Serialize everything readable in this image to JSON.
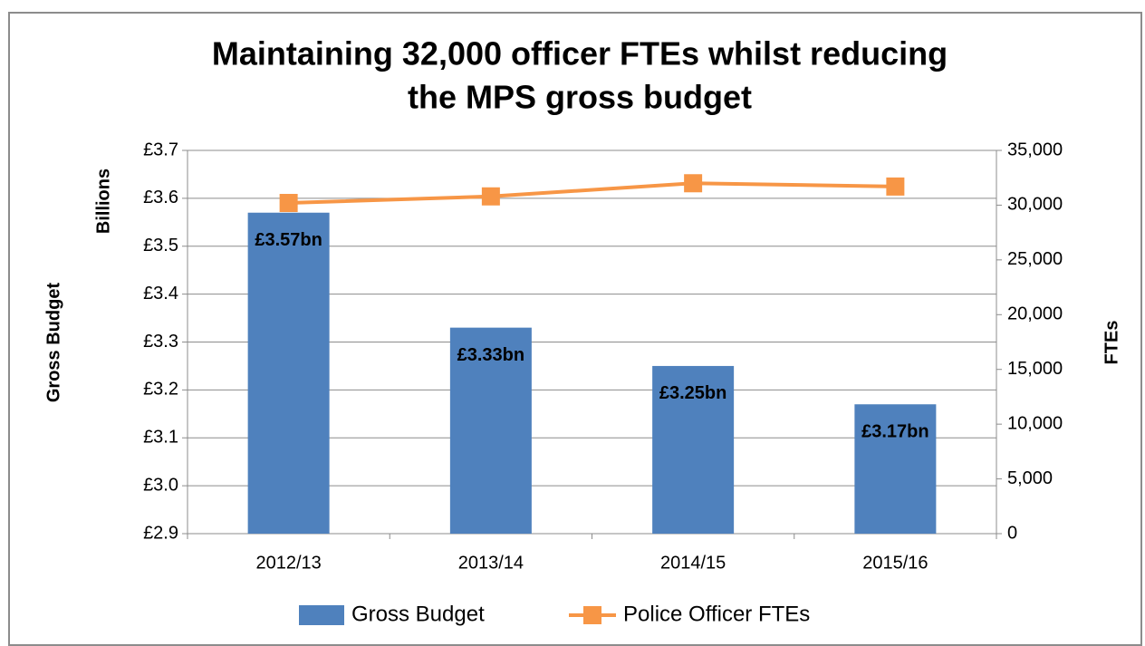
{
  "chart_data": {
    "type": "bar",
    "title": [
      "Maintaining 32,000 officer FTEs whilst reducing",
      "the MPS gross budget"
    ],
    "y_label": "Gross Budget",
    "y_unit": "Billions",
    "y2_label": "FTEs",
    "categories": [
      "2012/13",
      "2013/14",
      "2014/15",
      "2015/16"
    ],
    "series": [
      {
        "name": "Gross Budget",
        "type": "bar",
        "color": "#4f81bd",
        "values": [
          3.57,
          3.33,
          3.25,
          3.17
        ],
        "value_labels": [
          "£3.57bn",
          "£3.33bn",
          "£3.25bn",
          "£3.17bn"
        ]
      },
      {
        "name": "Police Officer FTEs",
        "type": "line",
        "color": "#f79646",
        "axis": "y2",
        "values": [
          30200,
          30800,
          32000,
          31700
        ]
      }
    ],
    "ylim": [
      2.9,
      3.7
    ],
    "yticks": [
      {
        "value": 2.9,
        "label": "£2.9"
      },
      {
        "value": 3.0,
        "label": "£3.0"
      },
      {
        "value": 3.1,
        "label": "£3.1"
      },
      {
        "value": 3.2,
        "label": "£3.2"
      },
      {
        "value": 3.3,
        "label": "£3.3"
      },
      {
        "value": 3.4,
        "label": "£3.4"
      },
      {
        "value": 3.5,
        "label": "£3.5"
      },
      {
        "value": 3.6,
        "label": "£3.6"
      },
      {
        "value": 3.7,
        "label": "£3.7"
      }
    ],
    "y2lim": [
      0,
      35000
    ],
    "y2ticks": [
      0,
      {
        "value": 5000,
        "label": "5,000"
      },
      {
        "value": 10000,
        "label": "10,000"
      },
      {
        "value": 15000,
        "label": "15,000"
      },
      {
        "value": 20000,
        "label": "20,000"
      },
      {
        "value": 25000,
        "label": "25,000"
      },
      {
        "value": 30000,
        "label": "30,000"
      },
      {
        "value": 35000,
        "label": "35,000"
      }
    ],
    "grid": true,
    "legend": "bottom"
  }
}
